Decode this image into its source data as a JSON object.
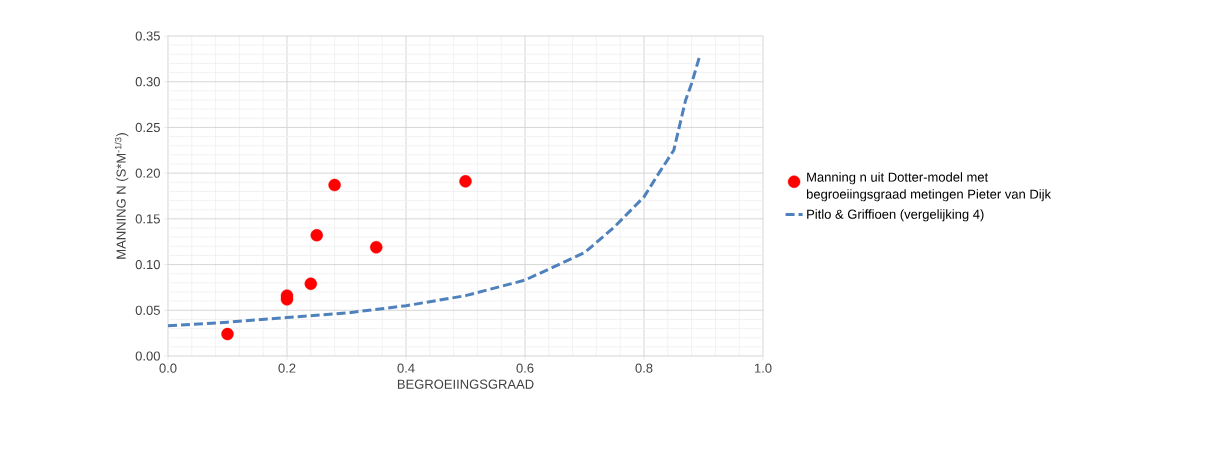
{
  "chart_data": {
    "type": "scatter",
    "xlabel": "BEGROEIINGSGRAAD",
    "ylabel": "MANNING N (S*M$^{-1/3}$)",
    "xlim": [
      0,
      1
    ],
    "ylim": [
      0,
      0.35
    ],
    "xticks": [
      {
        "value": 0,
        "label": "0.0"
      },
      0.2,
      0.4,
      0.6,
      0.8,
      {
        "value": 1,
        "label": "1.0"
      }
    ],
    "yticks": [
      {
        "value": 0,
        "label": "0.00"
      },
      0.05,
      {
        "value": 0.1,
        "label": "0.10"
      },
      0.15,
      {
        "value": 0.2,
        "label": "0.20"
      },
      0.25,
      {
        "value": 0.3,
        "label": "0.30"
      },
      0.35
    ],
    "grid": true,
    "legend": "right",
    "series": [
      {
        "name": "Manning n uit Dotter-model met begroeiingsgraad metingen Pieter van Dijk",
        "marker": "circle",
        "color": "#ff0000",
        "x": [
          0.1,
          0.2,
          0.2,
          0.24,
          0.25,
          0.28,
          0.35,
          0.5
        ],
        "values": [
          0.024,
          0.066,
          0.062,
          0.079,
          0.132,
          0.187,
          0.119,
          0.191
        ]
      },
      {
        "name": "Pitlo & Griffioen (vergelijking 4)",
        "type": "line",
        "marker": "none",
        "line_style": "dashed",
        "color": "#4f81bd",
        "x": [
          0,
          0.1,
          0.2,
          0.3,
          0.4,
          0.5,
          0.6,
          0.7,
          0.75,
          0.8,
          0.825,
          0.85,
          0.87,
          0.88,
          0.894
        ],
        "values": [
          0.033,
          0.037,
          0.042,
          0.047,
          0.055,
          0.066,
          0.083,
          0.113,
          0.141,
          0.174,
          0.2,
          0.225,
          0.28,
          0.298,
          0.329
        ]
      }
    ]
  }
}
